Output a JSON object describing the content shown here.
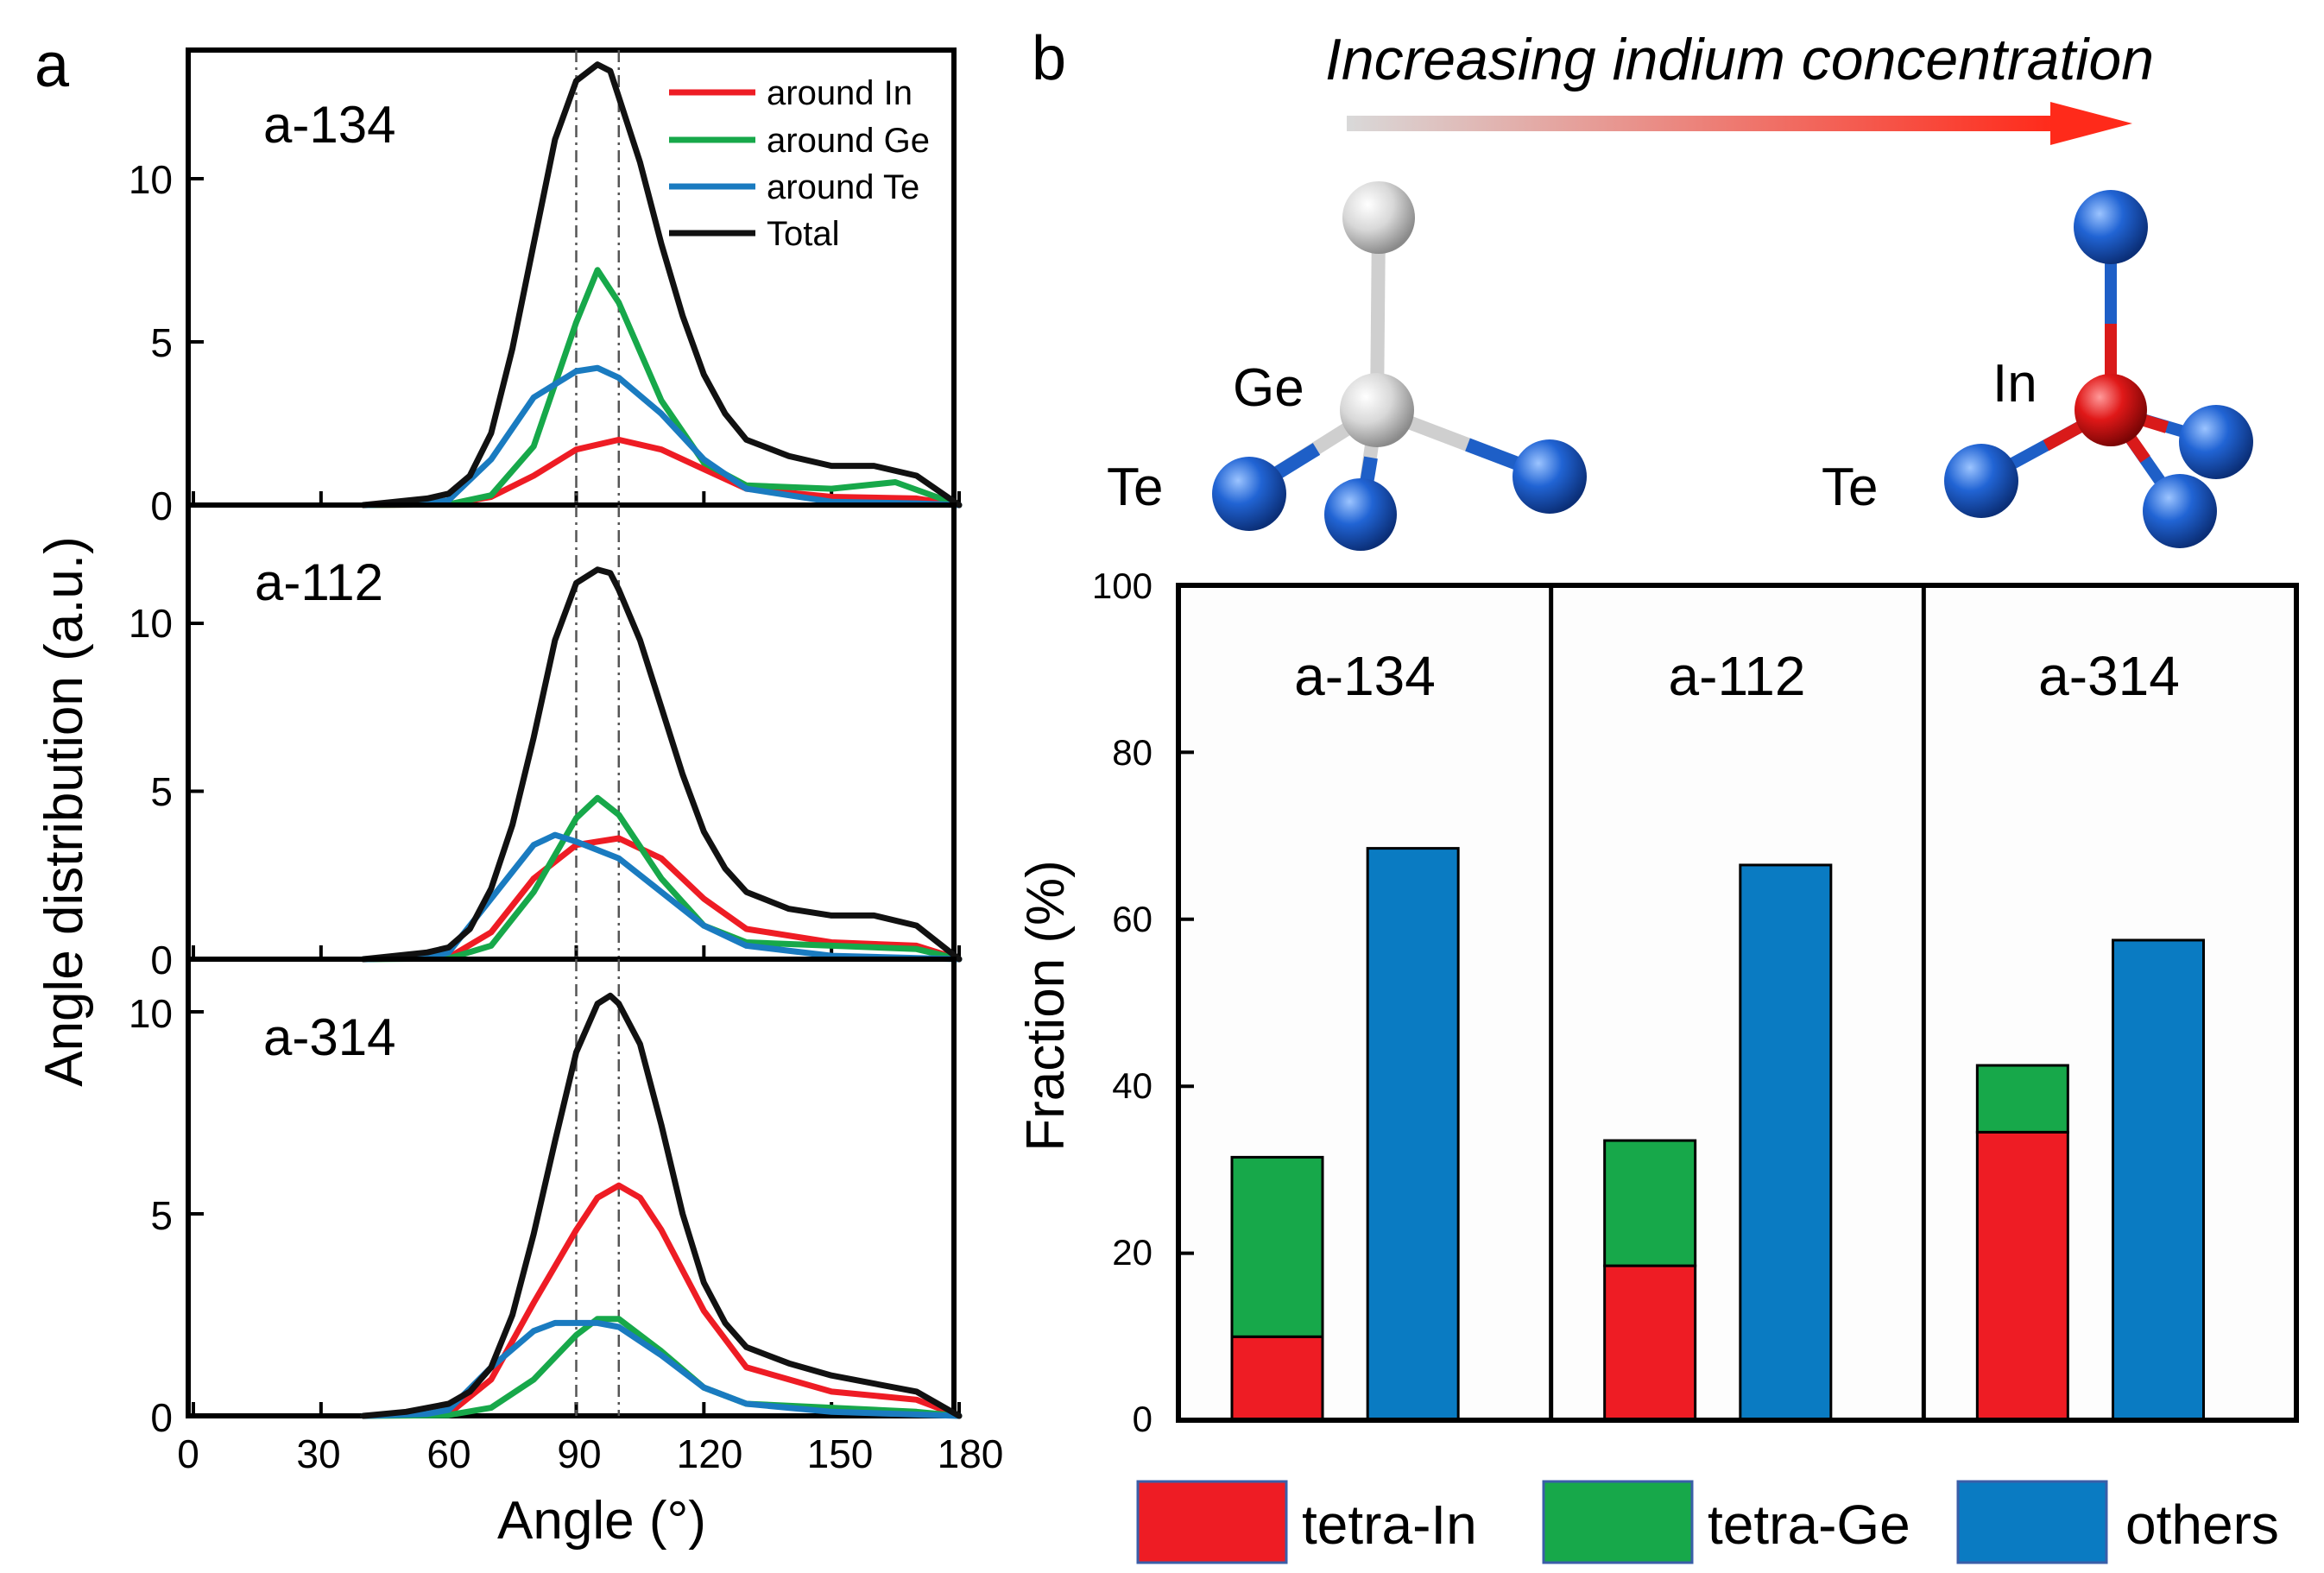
{
  "panel_a": {
    "label": "a",
    "xlabel": "Angle (°)",
    "ylabel": "Angle distribution (a.u.)",
    "xticks": [
      "0",
      "30",
      "60",
      "90",
      "120",
      "150",
      "180"
    ],
    "yticks_top": [
      "0",
      "5",
      "10"
    ],
    "yticks_mid": [
      "0",
      "5",
      "10"
    ],
    "yticks_bot": [
      "0",
      "5",
      "10"
    ],
    "legend": [
      "around In",
      "around Ge",
      "around Te",
      "Total"
    ],
    "samples": [
      "a-134",
      "a-112",
      "a-314"
    ]
  },
  "panel_b": {
    "label": "b",
    "arrow_caption": "Increasing indium concentration",
    "molecule_ge": {
      "center": "Ge",
      "ligand": "Te"
    },
    "molecule_in": {
      "center": "In",
      "ligand": "Te"
    },
    "ylabel": "Fraction (%)",
    "yticks": [
      "0",
      "20",
      "40",
      "60",
      "80",
      "100"
    ],
    "groups": [
      "a-134",
      "a-112",
      "a-314"
    ],
    "legend": [
      "tetra-In",
      "tetra-Ge",
      "others"
    ]
  },
  "colors": {
    "in": "#ee1c24",
    "ge": "#17a84a",
    "te": "#1a7bc0",
    "total": "#111111",
    "others": "#0a7bc2",
    "atom_blue": "#1e5fc7",
    "atom_red": "#d91a1a",
    "atom_white": "#d8d8d8"
  },
  "chart_data": [
    {
      "type": "line",
      "title": "a-134",
      "xlabel": "Angle (°)",
      "ylabel": "Angle distribution (a.u.)",
      "xlim": [
        0,
        180
      ],
      "ylim": [
        0,
        14
      ],
      "reference_lines": [
        90,
        100
      ],
      "series": [
        {
          "name": "around In",
          "x": [
            40,
            60,
            70,
            80,
            90,
            100,
            110,
            120,
            130,
            150,
            170,
            180
          ],
          "y": [
            0,
            0.02,
            0.25,
            0.9,
            1.7,
            2.0,
            1.7,
            1.1,
            0.5,
            0.25,
            0.2,
            0
          ]
        },
        {
          "name": "around Ge",
          "x": [
            40,
            60,
            70,
            80,
            90,
            95,
            100,
            110,
            120,
            130,
            150,
            165,
            180
          ],
          "y": [
            0,
            0.02,
            0.3,
            1.8,
            5.6,
            7.2,
            6.2,
            3.2,
            1.3,
            0.6,
            0.5,
            0.7,
            0
          ]
        },
        {
          "name": "around Te",
          "x": [
            40,
            55,
            60,
            70,
            80,
            90,
            95,
            100,
            110,
            120,
            130,
            150,
            170,
            180
          ],
          "y": [
            0,
            0.05,
            0.15,
            1.4,
            3.3,
            4.1,
            4.2,
            3.9,
            2.8,
            1.4,
            0.5,
            0.1,
            0.05,
            0
          ]
        },
        {
          "name": "Total",
          "x": [
            40,
            55,
            60,
            65,
            70,
            75,
            80,
            85,
            90,
            95,
            98,
            100,
            105,
            110,
            115,
            120,
            125,
            130,
            140,
            150,
            160,
            170,
            180
          ],
          "y": [
            0,
            0.2,
            0.35,
            0.9,
            2.2,
            4.8,
            8.0,
            11.2,
            13.0,
            13.5,
            13.3,
            12.5,
            10.5,
            8.0,
            5.8,
            4.0,
            2.8,
            2.0,
            1.5,
            1.2,
            1.2,
            0.9,
            0
          ]
        }
      ]
    },
    {
      "type": "line",
      "title": "a-112",
      "xlabel": "Angle (°)",
      "ylabel": "Angle distribution (a.u.)",
      "xlim": [
        0,
        180
      ],
      "ylim": [
        0,
        13
      ],
      "reference_lines": [
        90,
        100
      ],
      "series": [
        {
          "name": "around In",
          "x": [
            40,
            60,
            70,
            80,
            90,
            100,
            110,
            120,
            130,
            150,
            170,
            180
          ],
          "y": [
            0,
            0.05,
            0.8,
            2.4,
            3.4,
            3.6,
            3.0,
            1.8,
            0.9,
            0.5,
            0.4,
            0
          ]
        },
        {
          "name": "around Ge",
          "x": [
            40,
            60,
            70,
            80,
            90,
            95,
            100,
            110,
            120,
            130,
            150,
            170,
            180
          ],
          "y": [
            0,
            0.02,
            0.4,
            2.0,
            4.2,
            4.8,
            4.3,
            2.4,
            1.0,
            0.5,
            0.4,
            0.3,
            0
          ]
        },
        {
          "name": "around Te",
          "x": [
            40,
            55,
            60,
            70,
            80,
            85,
            90,
            100,
            110,
            120,
            130,
            150,
            180
          ],
          "y": [
            0,
            0.05,
            0.2,
            1.8,
            3.4,
            3.7,
            3.5,
            3.0,
            2.0,
            1.0,
            0.4,
            0.1,
            0
          ]
        },
        {
          "name": "Total",
          "x": [
            40,
            55,
            60,
            65,
            70,
            75,
            80,
            85,
            90,
            95,
            98,
            100,
            105,
            110,
            115,
            120,
            125,
            130,
            140,
            150,
            160,
            170,
            180
          ],
          "y": [
            0,
            0.2,
            0.35,
            0.9,
            2.1,
            4.0,
            6.6,
            9.5,
            11.2,
            11.6,
            11.5,
            11.0,
            9.5,
            7.5,
            5.5,
            3.8,
            2.7,
            2.0,
            1.5,
            1.3,
            1.3,
            1.0,
            0
          ]
        }
      ]
    },
    {
      "type": "line",
      "title": "a-314",
      "xlabel": "Angle (°)",
      "ylabel": "Angle distribution (a.u.)",
      "xlim": [
        0,
        180
      ],
      "ylim": [
        0,
        11
      ],
      "reference_lines": [
        90,
        100
      ],
      "series": [
        {
          "name": "around In",
          "x": [
            40,
            60,
            70,
            80,
            90,
            95,
            100,
            105,
            110,
            120,
            130,
            150,
            170,
            180
          ],
          "y": [
            0,
            0.05,
            0.9,
            2.8,
            4.6,
            5.4,
            5.7,
            5.4,
            4.6,
            2.6,
            1.2,
            0.6,
            0.4,
            0
          ]
        },
        {
          "name": "around Ge",
          "x": [
            40,
            60,
            70,
            80,
            90,
            95,
            100,
            110,
            120,
            130,
            150,
            170,
            180
          ],
          "y": [
            0,
            0.02,
            0.2,
            0.9,
            2.0,
            2.4,
            2.4,
            1.6,
            0.7,
            0.3,
            0.2,
            0.1,
            0
          ]
        },
        {
          "name": "around Te",
          "x": [
            40,
            55,
            60,
            70,
            80,
            85,
            90,
            95,
            100,
            110,
            120,
            130,
            150,
            180
          ],
          "y": [
            0,
            0.05,
            0.15,
            1.2,
            2.1,
            2.3,
            2.3,
            2.3,
            2.2,
            1.5,
            0.7,
            0.3,
            0.1,
            0
          ]
        },
        {
          "name": "Total",
          "x": [
            40,
            50,
            60,
            65,
            70,
            75,
            80,
            85,
            90,
            95,
            98,
            100,
            105,
            110,
            115,
            120,
            125,
            130,
            140,
            150,
            160,
            170,
            180
          ],
          "y": [
            0,
            0.1,
            0.3,
            0.6,
            1.2,
            2.5,
            4.5,
            6.8,
            9.0,
            10.2,
            10.4,
            10.2,
            9.2,
            7.2,
            5.0,
            3.3,
            2.3,
            1.7,
            1.3,
            1.0,
            0.8,
            0.6,
            0
          ]
        }
      ]
    },
    {
      "type": "bar",
      "title": "",
      "xlabel": "",
      "ylabel": "Fraction (%)",
      "ylim": [
        0,
        100
      ],
      "categories": [
        "a-134",
        "a-112",
        "a-314"
      ],
      "stacked": true,
      "series": [
        {
          "name": "tetra-In",
          "values": [
            10,
            18.5,
            34.5
          ]
        },
        {
          "name": "tetra-Ge",
          "values": [
            21.5,
            15,
            8
          ]
        },
        {
          "name": "others",
          "values": [
            68.5,
            66.5,
            57.5
          ]
        }
      ]
    }
  ]
}
